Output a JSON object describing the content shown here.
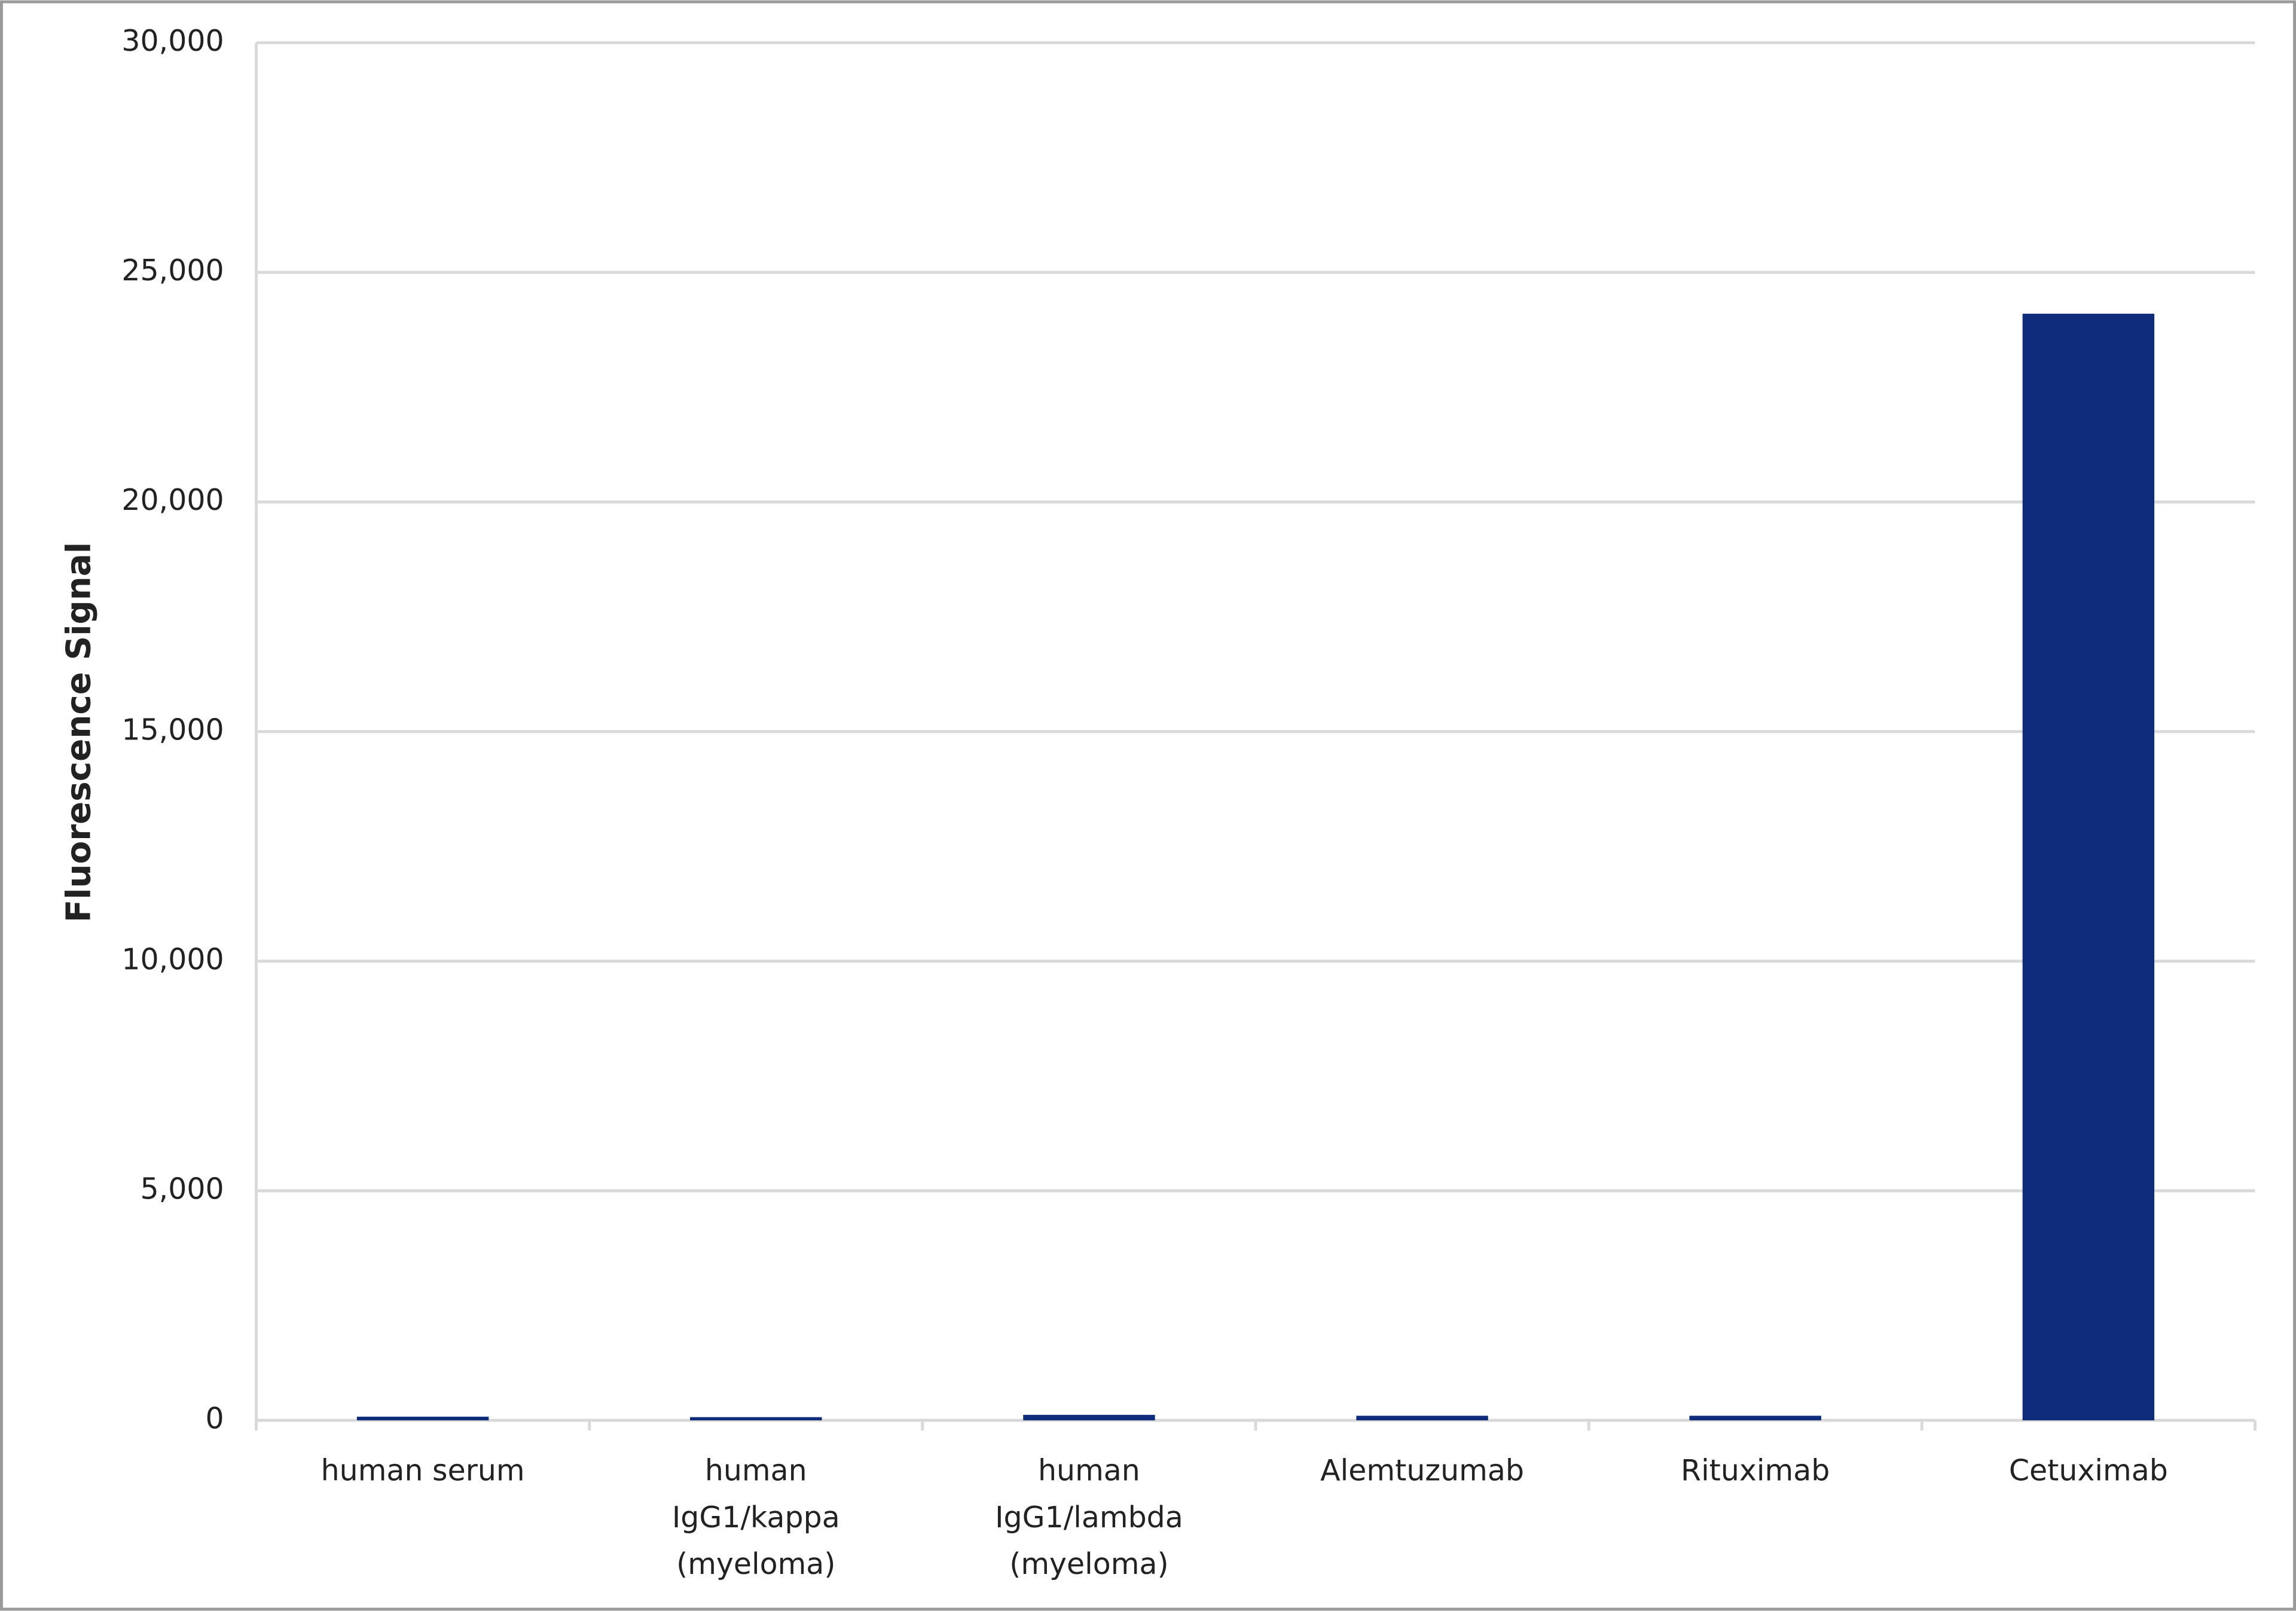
{
  "chart_data": {
    "type": "bar",
    "y_label": "Fluorescence Signal",
    "categories": [
      "human serum",
      "human\nIgG1/kappa\n(myeloma)",
      "human\nIgG1/lambda\n(myeloma)",
      "Alemtuzumab",
      "Rituximab",
      "Cetuximab"
    ],
    "values": [
      80,
      70,
      120,
      100,
      100,
      24100
    ],
    "color": "#0f2b7b",
    "ylim": [
      0,
      30000
    ],
    "yticks": [
      0,
      {
        "value": 5000,
        "label": "5,000"
      },
      {
        "value": 10000,
        "label": "10,000"
      },
      {
        "value": 15000,
        "label": "15,000"
      },
      {
        "value": 20000,
        "label": "20,000"
      },
      {
        "value": 25000,
        "label": "25,000"
      },
      {
        "value": 30000,
        "label": "30,000"
      }
    ],
    "grid": true
  }
}
